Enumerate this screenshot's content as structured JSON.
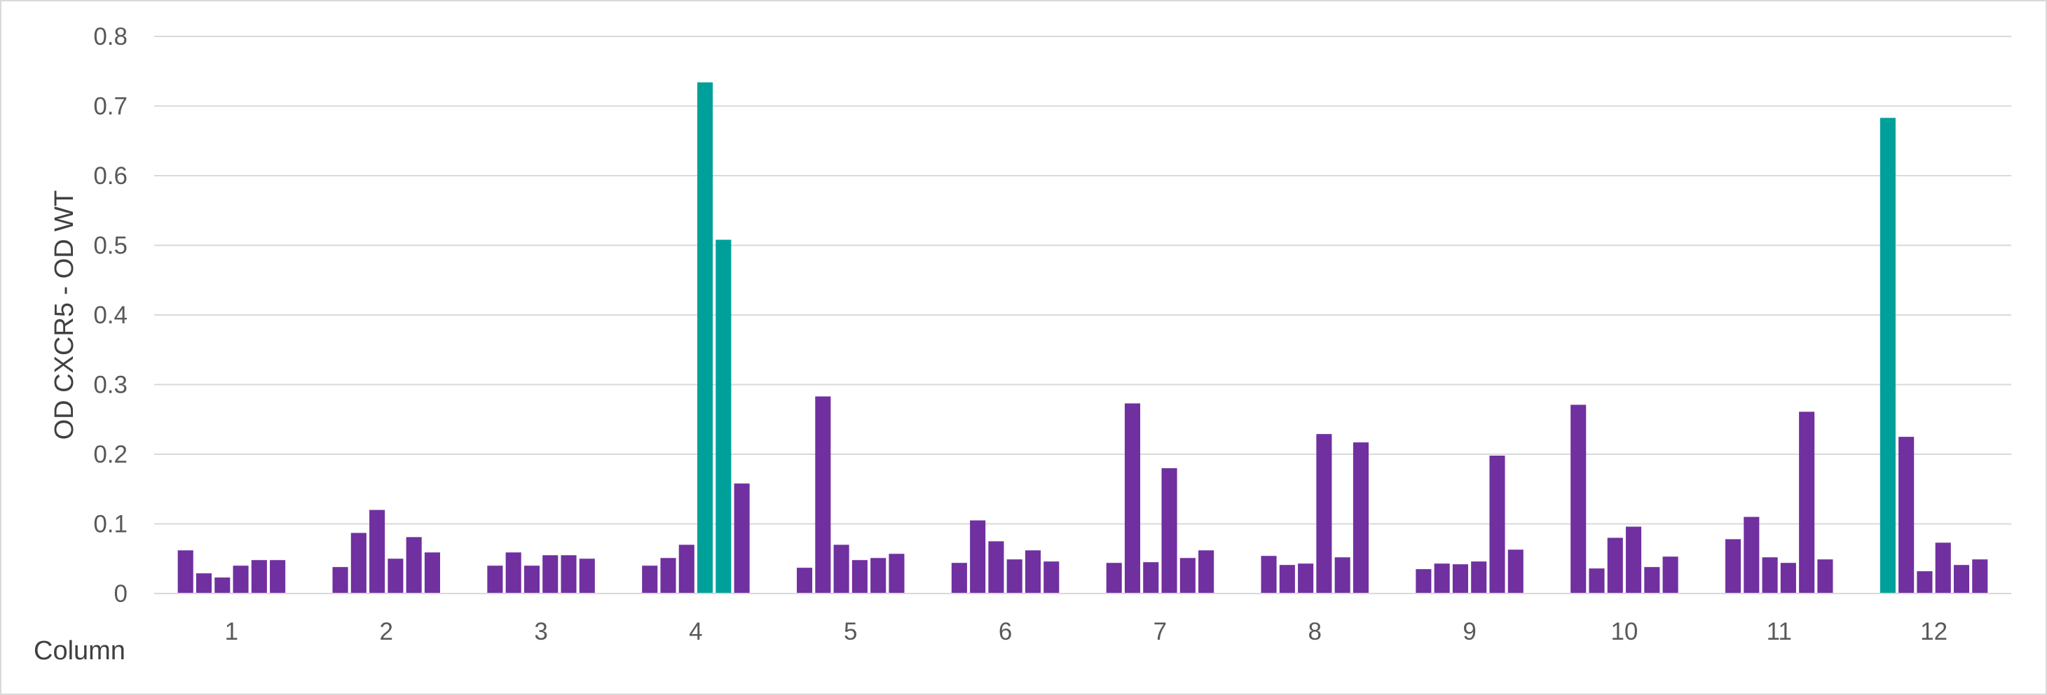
{
  "chart_data": {
    "type": "bar",
    "title": "",
    "xlabel": "Column",
    "ylabel": "OD CXCR5 - OD WT",
    "ylim": [
      0,
      0.8
    ],
    "yticks": [
      0,
      0.1,
      0.2,
      0.3,
      0.4,
      0.5,
      0.6,
      0.7,
      0.8
    ],
    "ytick_labels": [
      "0",
      "0.1",
      "0.2",
      "0.3",
      "0.4",
      "0.5",
      "0.6",
      "0.7",
      "0.8"
    ],
    "grid": true,
    "legend": "none",
    "colors": {
      "default": "#7030a0",
      "highlight": "#00a09a",
      "grid": "#d9d9d9"
    },
    "categories": [
      "1",
      "2",
      "3",
      "4",
      "5",
      "6",
      "7",
      "8",
      "9",
      "10",
      "11",
      "12"
    ],
    "groups": [
      {
        "label": "1",
        "values": [
          0.062,
          0.029,
          0.023,
          0.04,
          0.048,
          0.048
        ],
        "highlight": [
          false,
          false,
          false,
          false,
          false,
          false
        ]
      },
      {
        "label": "2",
        "values": [
          0.038,
          0.087,
          0.12,
          0.05,
          0.081,
          0.059
        ],
        "highlight": [
          false,
          false,
          false,
          false,
          false,
          false
        ]
      },
      {
        "label": "3",
        "values": [
          0.04,
          0.059,
          0.04,
          0.055,
          0.055,
          0.05
        ],
        "highlight": [
          false,
          false,
          false,
          false,
          false,
          false
        ]
      },
      {
        "label": "4",
        "values": [
          0.04,
          0.051,
          0.07,
          0.734,
          0.508,
          0.158
        ],
        "highlight": [
          false,
          false,
          false,
          true,
          true,
          false
        ]
      },
      {
        "label": "5",
        "values": [
          0.037,
          0.283,
          0.07,
          0.048,
          0.051,
          0.057
        ],
        "highlight": [
          false,
          false,
          false,
          false,
          false,
          false
        ]
      },
      {
        "label": "6",
        "values": [
          0.044,
          0.105,
          0.075,
          0.049,
          0.062,
          0.046
        ],
        "highlight": [
          false,
          false,
          false,
          false,
          false,
          false
        ]
      },
      {
        "label": "7",
        "values": [
          0.044,
          0.273,
          0.045,
          0.18,
          0.051,
          0.062
        ],
        "highlight": [
          false,
          false,
          false,
          false,
          false,
          false
        ]
      },
      {
        "label": "8",
        "values": [
          0.054,
          0.041,
          0.043,
          0.229,
          0.052,
          0.217
        ],
        "highlight": [
          false,
          false,
          false,
          false,
          false,
          false
        ]
      },
      {
        "label": "9",
        "values": [
          0.035,
          0.043,
          0.042,
          0.046,
          0.198,
          0.063
        ],
        "highlight": [
          false,
          false,
          false,
          false,
          false,
          false
        ]
      },
      {
        "label": "10",
        "values": [
          0.271,
          0.036,
          0.08,
          0.096,
          0.038,
          0.053
        ],
        "highlight": [
          false,
          false,
          false,
          false,
          false,
          false
        ]
      },
      {
        "label": "11",
        "values": [
          0.078,
          0.11,
          0.052,
          0.044,
          0.261,
          0.049
        ],
        "highlight": [
          false,
          false,
          false,
          false,
          false,
          false
        ]
      },
      {
        "label": "12",
        "values": [
          0.683,
          0.225,
          0.032,
          0.073,
          0.041,
          0.049
        ],
        "highlight": [
          true,
          false,
          false,
          false,
          false,
          false
        ]
      }
    ]
  }
}
